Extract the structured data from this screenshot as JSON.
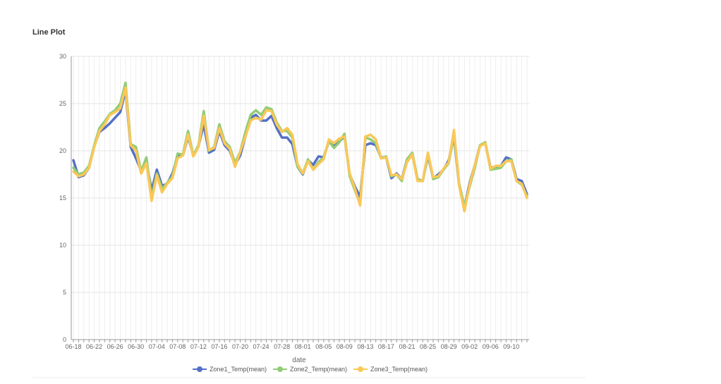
{
  "title": "Line Plot",
  "chart_data": {
    "type": "line",
    "xlabel": "date",
    "ylabel": "",
    "ylim": [
      0,
      30
    ],
    "yticks": [
      0,
      5,
      10,
      15,
      20,
      25,
      30
    ],
    "x_start": "06-18",
    "x_tick_labels": [
      "06-18",
      "06-22",
      "06-26",
      "06-30",
      "07-04",
      "07-08",
      "07-12",
      "07-16",
      "07-20",
      "07-24",
      "07-28",
      "08-01",
      "08-05",
      "08-09",
      "08-13",
      "08-17",
      "08-21",
      "08-25",
      "08-29",
      "09-02",
      "09-06",
      "09-10"
    ],
    "legend_position": "bottom",
    "grid": true,
    "x": [
      "06-18",
      "06-19",
      "06-20",
      "06-21",
      "06-22",
      "06-23",
      "06-24",
      "06-25",
      "06-26",
      "06-27",
      "06-28",
      "06-29",
      "06-30",
      "07-01",
      "07-02",
      "07-03",
      "07-04",
      "07-05",
      "07-06",
      "07-07",
      "07-08",
      "07-09",
      "07-10",
      "07-11",
      "07-12",
      "07-13",
      "07-14",
      "07-15",
      "07-16",
      "07-17",
      "07-18",
      "07-19",
      "07-20",
      "07-21",
      "07-22",
      "07-23",
      "07-24",
      "07-25",
      "07-26",
      "07-27",
      "07-28",
      "07-29",
      "07-30",
      "07-31",
      "08-01",
      "08-02",
      "08-03",
      "08-04",
      "08-05",
      "08-06",
      "08-07",
      "08-08",
      "08-09",
      "08-10",
      "08-11",
      "08-12",
      "08-13",
      "08-14",
      "08-15",
      "08-16",
      "08-17",
      "08-18",
      "08-19",
      "08-20",
      "08-21",
      "08-22",
      "08-23",
      "08-24",
      "08-25",
      "08-26",
      "08-27",
      "08-28",
      "08-29",
      "08-30",
      "08-31",
      "09-01",
      "09-02",
      "09-03",
      "09-04",
      "09-05",
      "09-06",
      "09-07",
      "09-08",
      "09-09",
      "09-10",
      "09-11",
      "09-12",
      "09-13"
    ],
    "series": [
      {
        "name": "Zone1_Temp(mean)",
        "color": "#5470c6",
        "values": [
          19.0,
          17.2,
          17.4,
          18.2,
          20.5,
          22.0,
          22.4,
          22.9,
          23.5,
          24.1,
          26.4,
          20.4,
          19.2,
          17.9,
          18.8,
          15.8,
          18.0,
          16.3,
          16.5,
          17.6,
          19.4,
          19.5,
          21.5,
          19.5,
          20.5,
          22.8,
          19.8,
          20.1,
          22.1,
          20.6,
          20.0,
          18.5,
          19.5,
          21.5,
          23.5,
          23.8,
          23.2,
          23.2,
          23.7,
          22.4,
          21.4,
          21.4,
          20.7,
          18.3,
          17.5,
          19.0,
          18.5,
          19.4,
          19.3,
          21.0,
          20.5,
          21.0,
          21.5,
          17.5,
          16.2,
          15.1,
          20.6,
          20.8,
          20.6,
          19.3,
          19.3,
          17.1,
          17.6,
          17.0,
          19.1,
          19.7,
          17.0,
          16.8,
          19.5,
          17.1,
          17.5,
          18.0,
          19.0,
          21.5,
          16.3,
          14.0,
          16.6,
          18.5,
          20.6,
          20.8,
          18.2,
          18.3,
          18.4,
          19.3,
          19.1,
          17.0,
          16.8,
          15.4
        ]
      },
      {
        "name": "Zone2_Temp(mean)",
        "color": "#91cc75",
        "values": [
          18.2,
          17.5,
          17.7,
          18.4,
          20.6,
          22.4,
          23.1,
          23.9,
          24.3,
          25.0,
          27.2,
          20.7,
          20.4,
          17.8,
          19.3,
          15.1,
          17.6,
          16.0,
          16.6,
          17.3,
          19.7,
          19.6,
          22.1,
          19.5,
          20.6,
          24.2,
          20.0,
          20.4,
          22.8,
          21.0,
          20.4,
          18.7,
          19.9,
          22.0,
          23.8,
          24.3,
          23.8,
          24.6,
          24.4,
          23.0,
          22.1,
          22.1,
          21.4,
          18.3,
          17.6,
          19.1,
          18.0,
          18.8,
          19.3,
          21.0,
          20.3,
          20.9,
          21.8,
          17.3,
          15.8,
          14.4,
          21.4,
          21.2,
          20.8,
          19.2,
          19.4,
          17.3,
          17.5,
          16.8,
          19.1,
          19.8,
          17.0,
          16.8,
          19.7,
          17.0,
          17.2,
          18.0,
          18.7,
          21.8,
          16.5,
          14.1,
          16.2,
          18.2,
          20.6,
          20.9,
          18.0,
          18.1,
          18.2,
          18.9,
          19.1,
          16.8,
          16.4,
          15.2
        ]
      },
      {
        "name": "Zone3_Temp(mean)",
        "color": "#fac858",
        "values": [
          17.8,
          17.3,
          17.5,
          18.2,
          20.4,
          22.1,
          22.8,
          23.8,
          24.1,
          24.5,
          26.7,
          20.6,
          20.0,
          17.6,
          18.7,
          14.7,
          17.4,
          15.6,
          16.5,
          17.1,
          19.2,
          19.5,
          21.7,
          19.4,
          20.4,
          23.7,
          20.1,
          20.3,
          22.4,
          20.8,
          20.2,
          18.3,
          19.9,
          21.5,
          23.2,
          23.5,
          23.3,
          24.3,
          24.2,
          22.8,
          22.0,
          22.4,
          21.7,
          18.6,
          17.6,
          18.9,
          18.0,
          18.6,
          19.1,
          21.2,
          20.8,
          21.3,
          21.5,
          17.6,
          16.0,
          14.2,
          21.5,
          21.7,
          21.2,
          19.2,
          19.3,
          17.4,
          17.5,
          17.0,
          18.8,
          19.6,
          16.8,
          16.8,
          19.8,
          17.2,
          17.3,
          18.1,
          18.8,
          22.2,
          16.3,
          13.6,
          16.4,
          18.5,
          20.5,
          20.8,
          18.1,
          18.4,
          18.4,
          18.9,
          18.9,
          16.8,
          16.5,
          15.0
        ]
      }
    ]
  }
}
